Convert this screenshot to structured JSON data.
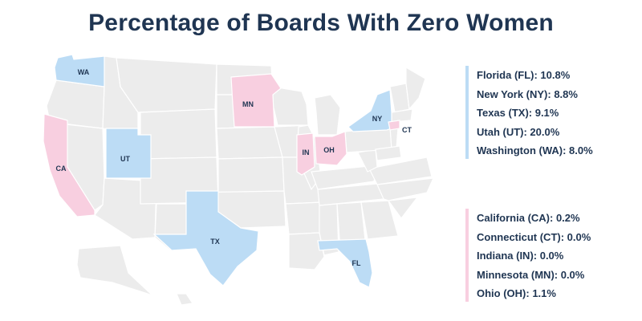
{
  "title": "Percentage of Boards With Zero Women",
  "colors": {
    "base_state": "#ececec",
    "state_border": "#ffffff",
    "high_group": "#bcdcf5",
    "low_group": "#f8cfe0",
    "text": "#1f3552"
  },
  "map": {
    "highlighted_states": [
      {
        "abbr": "WA",
        "group": "high"
      },
      {
        "abbr": "MN",
        "group": "low"
      },
      {
        "abbr": "NY",
        "group": "high"
      },
      {
        "abbr": "CT",
        "group": "low"
      },
      {
        "abbr": "UT",
        "group": "high"
      },
      {
        "abbr": "IN",
        "group": "low"
      },
      {
        "abbr": "OH",
        "group": "low"
      },
      {
        "abbr": "CA",
        "group": "low"
      },
      {
        "abbr": "TX",
        "group": "high"
      },
      {
        "abbr": "FL",
        "group": "high"
      }
    ]
  },
  "legend": {
    "high": [
      {
        "label": "Florida (FL): 10.8%",
        "abbr": "FL",
        "value": 10.8
      },
      {
        "label": "New York (NY): 8.8%",
        "abbr": "NY",
        "value": 8.8
      },
      {
        "label": "Texas (TX): 9.1%",
        "abbr": "TX",
        "value": 9.1
      },
      {
        "label": "Utah (UT): 20.0%",
        "abbr": "UT",
        "value": 20.0
      },
      {
        "label": "Washington (WA): 8.0%",
        "abbr": "WA",
        "value": 8.0
      }
    ],
    "low": [
      {
        "label": "California (CA): 0.2%",
        "abbr": "CA",
        "value": 0.2
      },
      {
        "label": "Connecticut (CT): 0.0%",
        "abbr": "CT",
        "value": 0.0
      },
      {
        "label": "Indiana (IN): 0.0%",
        "abbr": "IN",
        "value": 0.0
      },
      {
        "label": "Minnesota (MN): 0.0%",
        "abbr": "MN",
        "value": 0.0
      },
      {
        "label": "Ohio (OH): 1.1%",
        "abbr": "OH",
        "value": 1.1
      }
    ]
  }
}
